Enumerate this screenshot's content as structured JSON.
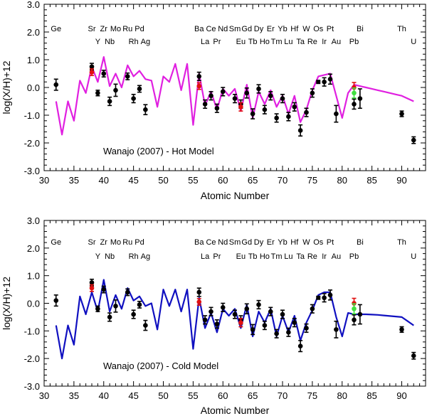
{
  "chart_data": [
    {
      "type": "scatter",
      "panel": "top",
      "title": "",
      "annotation": "Wanajo (2007) - Hot Model",
      "xlabel": "Atomic Number",
      "ylabel": "log(X/H)+12",
      "xlim": [
        30,
        94
      ],
      "ylim": [
        -3.0,
        3.0
      ],
      "xticks": [
        30,
        35,
        40,
        45,
        50,
        55,
        60,
        65,
        70,
        75,
        80,
        85,
        90
      ],
      "yticks": [
        -3.0,
        -2.0,
        -1.0,
        0.0,
        1.0,
        2.0,
        3.0
      ],
      "ytick_labels": [
        "-3.0",
        "-2.0",
        "-1.0",
        "0.0",
        "1.0",
        "2.0",
        "3.0"
      ],
      "model": {
        "name": "Wanajo (2007) - Hot Model",
        "color": "#e020e0",
        "x": [
          32,
          33,
          34,
          35,
          36,
          37,
          38,
          39,
          40,
          41,
          42,
          43,
          44,
          45,
          46,
          47,
          48,
          49,
          50,
          51,
          52,
          53,
          54,
          55,
          56,
          57,
          58,
          59,
          60,
          61,
          62,
          63,
          64,
          65,
          66,
          67,
          68,
          69,
          70,
          71,
          72,
          73,
          74,
          75,
          76,
          77,
          78,
          79,
          80,
          81,
          82,
          83,
          84,
          85,
          86,
          87,
          88,
          89,
          90,
          91,
          92
        ],
        "y": [
          -0.5,
          -1.7,
          -0.5,
          -1.2,
          0.25,
          -0.2,
          0.75,
          0.2,
          1.1,
          0.05,
          0.5,
          0.0,
          0.8,
          0.4,
          0.6,
          0.3,
          0.25,
          -0.7,
          0.4,
          0.2,
          0.85,
          -0.1,
          0.85,
          -1.35,
          0.5,
          -0.65,
          -0.15,
          -0.8,
          -0.05,
          -0.3,
          -0.05,
          -0.85,
          0.1,
          -1.1,
          -0.15,
          -0.6,
          -0.1,
          -0.7,
          -0.3,
          -0.95,
          -0.3,
          -1.25,
          -0.8,
          -0.1,
          0.4,
          0.45,
          0.5,
          -0.3,
          -1.1,
          -0.2,
          0.1,
          0.05,
          0.0,
          -0.05,
          -0.1,
          -0.15,
          -0.2,
          -0.25,
          -0.3,
          -0.4,
          -0.5
        ]
      }
    },
    {
      "type": "scatter",
      "panel": "bottom",
      "title": "",
      "annotation": "Wanajo (2007) - Cold Model",
      "xlabel": "Atomic Number",
      "ylabel": "log(X/H)+12",
      "xlim": [
        30,
        94
      ],
      "ylim": [
        -3.0,
        3.0
      ],
      "xticks": [
        30,
        35,
        40,
        45,
        50,
        55,
        60,
        65,
        70,
        75,
        80,
        85,
        90
      ],
      "yticks": [
        -3.0,
        -2.0,
        -1.0,
        0.0,
        1.0,
        2.0,
        3.0
      ],
      "ytick_labels": [
        "-3.0",
        "-2.0",
        "-1.0",
        "0.0",
        "1.0",
        "2.0",
        "3.0"
      ],
      "model": {
        "name": "Wanajo (2007) - Cold Model",
        "color": "#1010c0",
        "x": [
          32,
          33,
          34,
          35,
          36,
          37,
          38,
          39,
          40,
          41,
          42,
          43,
          44,
          45,
          46,
          47,
          48,
          49,
          50,
          51,
          52,
          53,
          54,
          55,
          56,
          57,
          58,
          59,
          60,
          61,
          62,
          63,
          64,
          65,
          66,
          67,
          68,
          69,
          70,
          71,
          72,
          73,
          74,
          75,
          76,
          77,
          78,
          79,
          80,
          81,
          82,
          83,
          84,
          85,
          86,
          87,
          88,
          89,
          90,
          91,
          92
        ],
        "y": [
          -0.8,
          -2.0,
          -0.8,
          -1.5,
          0.25,
          -0.4,
          0.4,
          -0.3,
          0.85,
          -0.3,
          0.3,
          -0.2,
          0.55,
          0.1,
          0.25,
          -0.1,
          0.0,
          -0.95,
          0.5,
          -0.1,
          0.5,
          -0.3,
          0.5,
          -1.65,
          0.2,
          -0.9,
          -0.35,
          -1.05,
          -0.2,
          -0.45,
          -0.2,
          -0.9,
          -0.05,
          -1.2,
          -0.3,
          -0.7,
          -0.2,
          -1.2,
          -0.45,
          -1.05,
          -0.45,
          -1.35,
          -0.7,
          -0.25,
          0.3,
          0.4,
          0.4,
          -0.5,
          -1.2,
          -0.35,
          -0.4,
          -0.4,
          -0.4,
          -0.41,
          -0.42,
          -0.44,
          -0.46,
          -0.48,
          -0.5,
          -0.65,
          -0.8
        ]
      }
    }
  ],
  "observations": {
    "black": [
      {
        "z": 32,
        "y": 0.1,
        "err": 0.2
      },
      {
        "z": 38,
        "y": 0.75,
        "err": 0.12
      },
      {
        "z": 39,
        "y": -0.2,
        "err": 0.1
      },
      {
        "z": 40,
        "y": 0.5,
        "err": 0.12
      },
      {
        "z": 41,
        "y": -0.5,
        "err": 0.15
      },
      {
        "z": 42,
        "y": -0.1,
        "err": 0.22
      },
      {
        "z": 44,
        "y": 0.4,
        "err": 0.12
      },
      {
        "z": 45,
        "y": -0.4,
        "err": 0.15
      },
      {
        "z": 46,
        "y": -0.05,
        "err": 0.12
      },
      {
        "z": 47,
        "y": -0.8,
        "err": 0.18
      },
      {
        "z": 56,
        "y": 0.4,
        "err": 0.15
      },
      {
        "z": 57,
        "y": -0.6,
        "err": 0.15
      },
      {
        "z": 58,
        "y": -0.3,
        "err": 0.15
      },
      {
        "z": 59,
        "y": -0.75,
        "err": 0.15
      },
      {
        "z": 60,
        "y": -0.15,
        "err": 0.15
      },
      {
        "z": 62,
        "y": -0.4,
        "err": 0.15
      },
      {
        "z": 63,
        "y": -0.6,
        "err": 0.15
      },
      {
        "z": 64,
        "y": -0.2,
        "err": 0.18
      },
      {
        "z": 65,
        "y": -0.95,
        "err": 0.18
      },
      {
        "z": 66,
        "y": -0.05,
        "err": 0.15
      },
      {
        "z": 67,
        "y": -0.8,
        "err": 0.15
      },
      {
        "z": 68,
        "y": -0.3,
        "err": 0.15
      },
      {
        "z": 69,
        "y": -1.1,
        "err": 0.15
      },
      {
        "z": 70,
        "y": -0.4,
        "err": 0.15
      },
      {
        "z": 71,
        "y": -1.05,
        "err": 0.15
      },
      {
        "z": 72,
        "y": -0.7,
        "err": 0.15
      },
      {
        "z": 73,
        "y": -1.55,
        "err": 0.2
      },
      {
        "z": 74,
        "y": -0.9,
        "err": 0.15
      },
      {
        "z": 75,
        "y": -0.2,
        "err": 0.15
      },
      {
        "z": 77,
        "y": 0.2,
        "err": 0.15
      },
      {
        "z": 78,
        "y": 0.3,
        "err": 0.18
      },
      {
        "z": 79,
        "y": -0.95,
        "err": 0.3
      },
      {
        "z": 82,
        "y": -0.6,
        "err": 0.18
      },
      {
        "z": 83,
        "y": -0.4,
        "err": 0.35
      },
      {
        "z": 90,
        "y": -0.95,
        "err": 0.1
      },
      {
        "z": 92,
        "y": -1.9,
        "err": 0.12
      }
    ],
    "black_square": [
      {
        "z": 76,
        "y": 0.2
      }
    ],
    "red": [
      {
        "z": 38,
        "y": 0.55,
        "err": 0.12
      },
      {
        "z": 56,
        "y": 0.05,
        "err": 0.12
      },
      {
        "z": 63,
        "y": -0.7,
        "err": 0.15
      },
      {
        "z": 82,
        "y": 0.0,
        "err": 0.18
      }
    ],
    "green": [
      {
        "z": 82,
        "y": -0.2,
        "err": 0.18
      }
    ]
  },
  "element_labels_row1": [
    {
      "sym": "Ge",
      "z": 32
    },
    {
      "sym": "Sr",
      "z": 38
    },
    {
      "sym": "Zr",
      "z": 40
    },
    {
      "sym": "Mo",
      "z": 42
    },
    {
      "sym": "Ru",
      "z": 44
    },
    {
      "sym": "Pd",
      "z": 46
    },
    {
      "sym": "Ba",
      "z": 56
    },
    {
      "sym": "Ce",
      "z": 58
    },
    {
      "sym": "Nd",
      "z": 60
    },
    {
      "sym": "Sm",
      "z": 62
    },
    {
      "sym": "Gd",
      "z": 64
    },
    {
      "sym": "Dy",
      "z": 66
    },
    {
      "sym": "Er",
      "z": 68
    },
    {
      "sym": "Yb",
      "z": 70
    },
    {
      "sym": "Hf",
      "z": 72
    },
    {
      "sym": "W",
      "z": 74
    },
    {
      "sym": "Os",
      "z": 76
    },
    {
      "sym": "Pt",
      "z": 78
    },
    {
      "sym": "Bi",
      "z": 83
    },
    {
      "sym": "Th",
      "z": 90
    }
  ],
  "element_labels_row2": [
    {
      "sym": "Y",
      "z": 39
    },
    {
      "sym": "Nb",
      "z": 41
    },
    {
      "sym": "Rh",
      "z": 45
    },
    {
      "sym": "Ag",
      "z": 47
    },
    {
      "sym": "La",
      "z": 57
    },
    {
      "sym": "Pr",
      "z": 59
    },
    {
      "sym": "Eu",
      "z": 63
    },
    {
      "sym": "Tb",
      "z": 65
    },
    {
      "sym": "Ho",
      "z": 67
    },
    {
      "sym": "Tm",
      "z": 69
    },
    {
      "sym": "Lu",
      "z": 71
    },
    {
      "sym": "Ta",
      "z": 73
    },
    {
      "sym": "Re",
      "z": 75
    },
    {
      "sym": "Ir",
      "z": 77
    },
    {
      "sym": "Au",
      "z": 79
    },
    {
      "sym": "Pb",
      "z": 82
    },
    {
      "sym": "U",
      "z": 92
    }
  ],
  "colors": {
    "observed": "#000000",
    "red": "#e01010",
    "green": "#40e040",
    "hot": "#e020e0",
    "cold": "#1010c0"
  }
}
